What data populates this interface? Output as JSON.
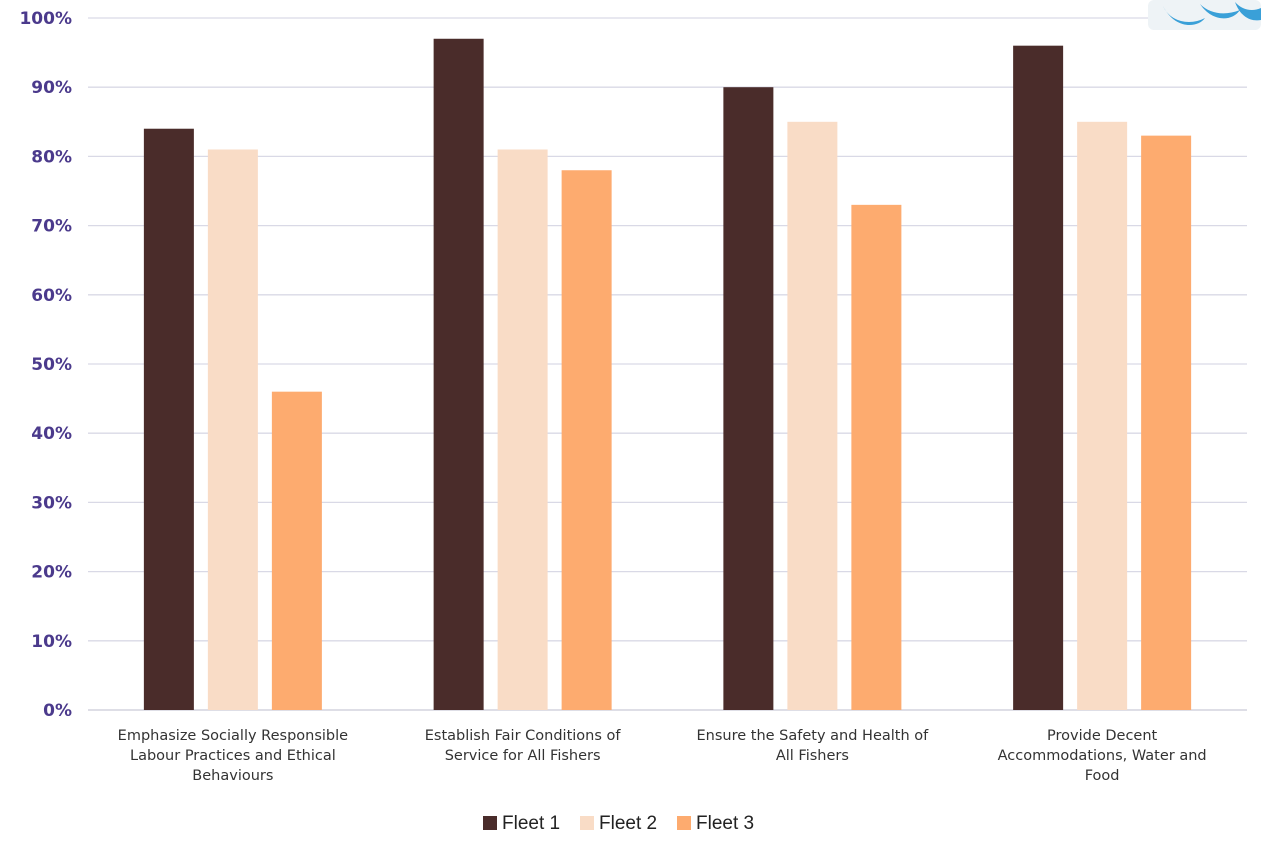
{
  "chart_data": {
    "type": "bar",
    "categories": [
      [
        "Emphasize Socially Responsible",
        "Labour Practices and Ethical",
        "Behaviours"
      ],
      [
        "Establish Fair Conditions of",
        "Service for All Fishers"
      ],
      [
        "Ensure the Safety and Health of",
        "All Fishers"
      ],
      [
        "Provide Decent",
        "Accommodations, Water and",
        "Food"
      ]
    ],
    "series": [
      {
        "name": "Fleet 1",
        "color": "#4a2c2a",
        "values": [
          84,
          97,
          90,
          96
        ]
      },
      {
        "name": "Fleet 2",
        "color": "#f9dcc6",
        "values": [
          81,
          81,
          85,
          85
        ]
      },
      {
        "name": "Fleet 3",
        "color": "#fdab6f",
        "values": [
          46,
          78,
          73,
          83
        ]
      }
    ],
    "yticks": [
      "0%",
      "10%",
      "20%",
      "30%",
      "40%",
      "50%",
      "60%",
      "70%",
      "80%",
      "90%",
      "100%"
    ],
    "ylim": [
      0,
      100
    ],
    "grid": true,
    "legend_position": "bottom",
    "colors": {
      "tick_text": "#4b3a8c",
      "grid": "#d9d9e6",
      "category_text": "#333333"
    }
  },
  "logo": {
    "icon": "organization-logo-icon"
  }
}
